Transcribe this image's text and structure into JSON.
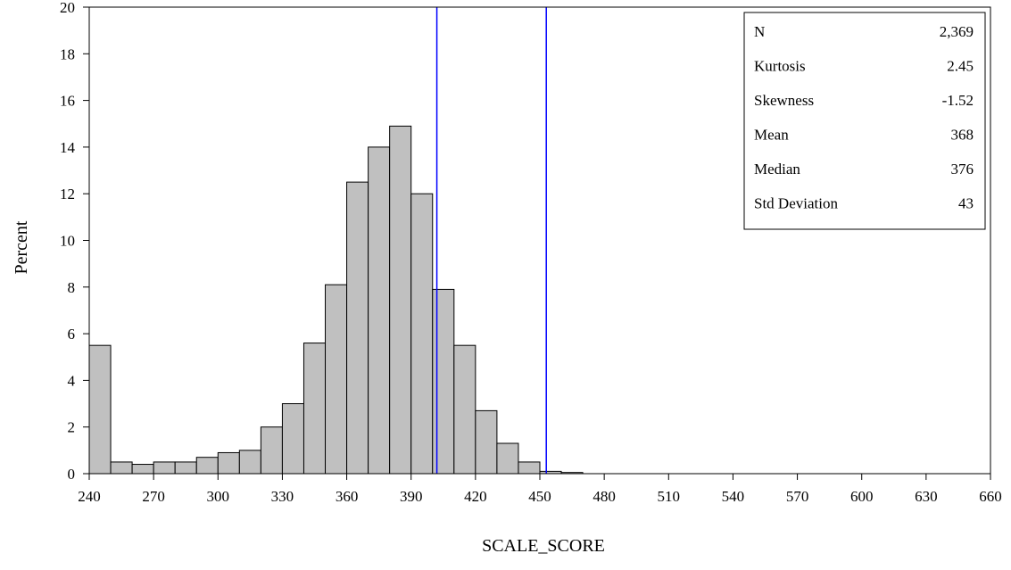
{
  "chart_data": {
    "type": "bar",
    "xlabel": "SCALE_SCORE",
    "ylabel": "Percent",
    "xlim": [
      240,
      660
    ],
    "ylim": [
      0,
      20
    ],
    "x_ticks": [
      240,
      270,
      300,
      330,
      360,
      390,
      420,
      450,
      480,
      510,
      540,
      570,
      600,
      630,
      660
    ],
    "y_ticks": [
      0,
      2,
      4,
      6,
      8,
      10,
      12,
      14,
      16,
      18,
      20
    ],
    "bin_width": 10,
    "bins": [
      {
        "start": 240,
        "value": 5.5
      },
      {
        "start": 250,
        "value": 0.5
      },
      {
        "start": 260,
        "value": 0.4
      },
      {
        "start": 270,
        "value": 0.5
      },
      {
        "start": 280,
        "value": 0.5
      },
      {
        "start": 290,
        "value": 0.7
      },
      {
        "start": 300,
        "value": 0.9
      },
      {
        "start": 310,
        "value": 1.0
      },
      {
        "start": 320,
        "value": 2.0
      },
      {
        "start": 330,
        "value": 3.0
      },
      {
        "start": 340,
        "value": 5.6
      },
      {
        "start": 350,
        "value": 8.1
      },
      {
        "start": 360,
        "value": 12.5
      },
      {
        "start": 370,
        "value": 14.0
      },
      {
        "start": 380,
        "value": 14.9
      },
      {
        "start": 390,
        "value": 12.0
      },
      {
        "start": 400,
        "value": 7.9
      },
      {
        "start": 410,
        "value": 5.5
      },
      {
        "start": 420,
        "value": 2.7
      },
      {
        "start": 430,
        "value": 1.3
      },
      {
        "start": 440,
        "value": 0.5
      },
      {
        "start": 450,
        "value": 0.1
      },
      {
        "start": 460,
        "value": 0.05
      }
    ],
    "reference_lines": [
      {
        "x": 402,
        "color": "#0000ff"
      },
      {
        "x": 453,
        "color": "#0000ff"
      }
    ],
    "bar_color": "#c0c0c0",
    "stats": [
      {
        "label": "N",
        "value": "2,369"
      },
      {
        "label": "Kurtosis",
        "value": "2.45"
      },
      {
        "label": "Skewness",
        "value": "-1.52"
      },
      {
        "label": "Mean",
        "value": "368"
      },
      {
        "label": "Median",
        "value": "376"
      },
      {
        "label": "Std Deviation",
        "value": "43"
      }
    ],
    "stats_placement": "top-right"
  }
}
